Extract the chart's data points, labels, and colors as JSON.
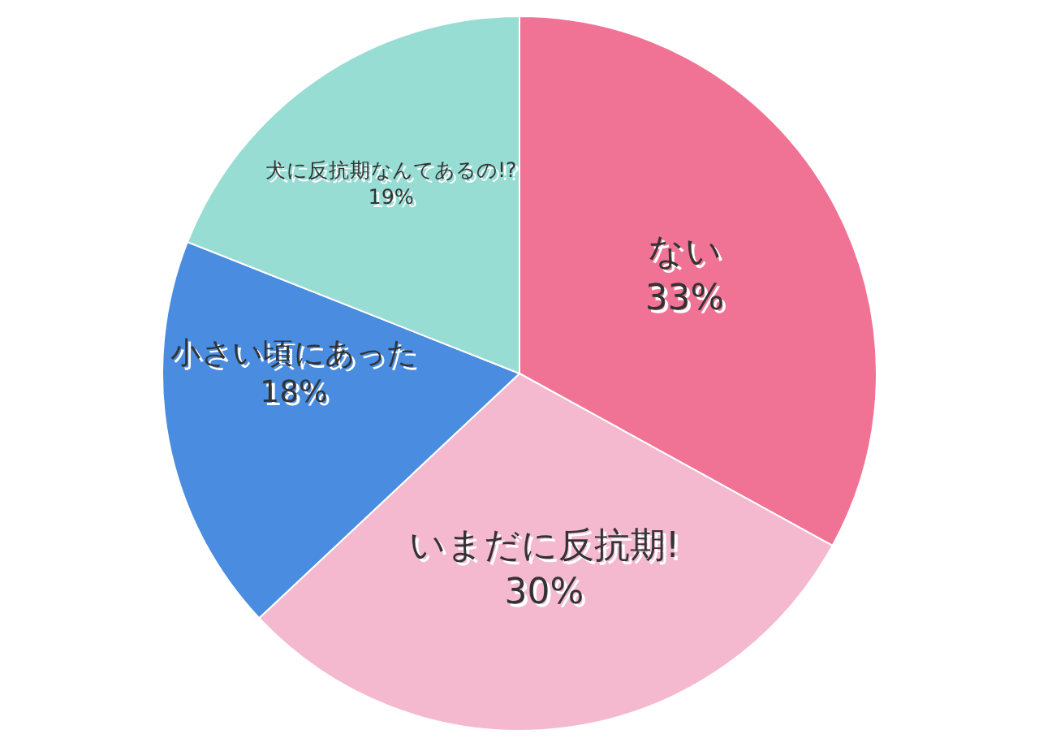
{
  "chart_data": {
    "type": "pie",
    "categories": [
      "ない",
      "いまだに反抗期!",
      "小さい頃にあった",
      "犬に反抗期なんてあるの!?"
    ],
    "values": [
      33,
      30,
      18,
      19
    ],
    "value_labels": [
      "33%",
      "30%",
      "18%",
      "19%"
    ],
    "colors": [
      "#f07396",
      "#f4b9cf",
      "#4a8cdf",
      "#98ddd3"
    ],
    "legend": false
  }
}
